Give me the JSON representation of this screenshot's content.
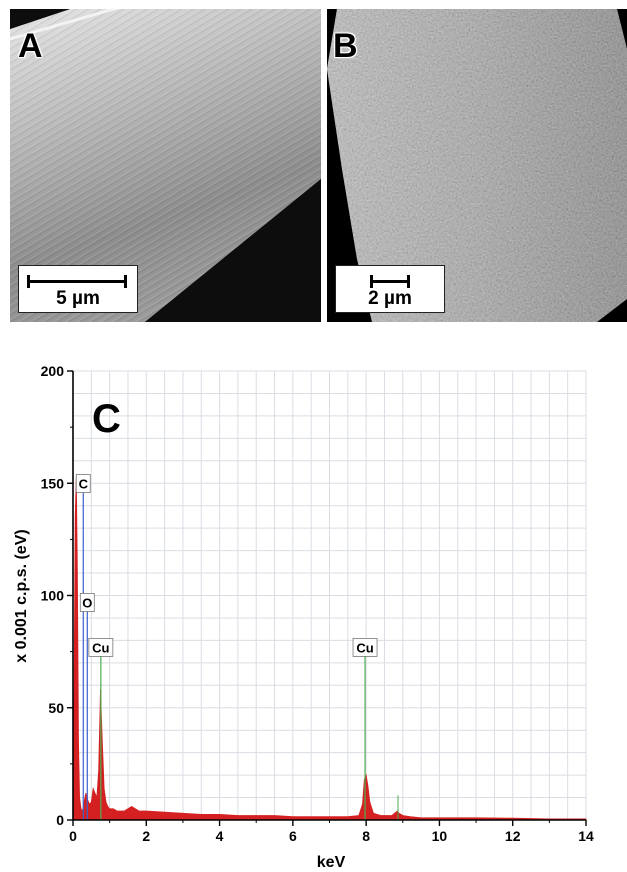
{
  "panels": {
    "a": {
      "letter": "A",
      "scale_label": "5 µm"
    },
    "b": {
      "letter": "B",
      "scale_label": "2 µm"
    },
    "c": {
      "letter": "C"
    }
  },
  "colors": {
    "spectrum_fill": "#d42020",
    "grid": "#d9dde3",
    "marker_carbon": "#3a5fcd",
    "marker_oxygen": "#3a5fcd",
    "marker_copper": "#4caf50"
  },
  "chart_data": {
    "type": "area",
    "title": "",
    "xlabel": "keV",
    "ylabel": "x 0.001 c.p.s. (eV)",
    "xlim": [
      0,
      14
    ],
    "ylim": [
      0,
      200
    ],
    "xticks": [
      0,
      2,
      4,
      6,
      8,
      10,
      12,
      14
    ],
    "yticks": [
      0,
      50,
      100,
      150,
      200
    ],
    "grid": true,
    "series": [
      {
        "x": [
          0,
          0.03,
          0.06,
          0.09,
          0.12,
          0.15,
          0.18,
          0.22,
          0.26,
          0.3,
          0.35,
          0.4,
          0.45,
          0.5,
          0.55,
          0.6,
          0.65,
          0.7,
          0.75,
          0.8,
          0.85,
          0.9,
          0.95,
          1.0,
          1.1,
          1.2,
          1.4,
          1.6,
          1.8,
          2.0,
          2.5,
          3.0,
          3.5,
          4.0,
          4.5,
          5.0,
          5.5,
          6.0,
          6.5,
          7.0,
          7.5,
          7.8,
          7.9,
          7.95,
          8.0,
          8.05,
          8.1,
          8.2,
          8.4,
          8.7,
          8.85,
          8.9,
          9.0,
          9.2,
          9.5,
          10.0,
          11.0,
          12.0,
          13.0,
          14.0
        ],
        "y": [
          5,
          60,
          135,
          153,
          110,
          35,
          10,
          5,
          4,
          8,
          12,
          9,
          7,
          8,
          14,
          12,
          10,
          22,
          58,
          35,
          14,
          8,
          6,
          5,
          5,
          4,
          4,
          6,
          4,
          4,
          3.5,
          3,
          2.5,
          2.5,
          2,
          2,
          2,
          1.5,
          1.5,
          1.5,
          1.5,
          2,
          7,
          18,
          20,
          15,
          8,
          3,
          2,
          2,
          4,
          3,
          2,
          1.5,
          1,
          1,
          1,
          0.8,
          0.5,
          0.5
        ]
      }
    ],
    "annotations": [
      {
        "label": "C",
        "x": 0.28,
        "peak_y": 153
      },
      {
        "label": "O",
        "x": 0.39,
        "peak_y": 100
      },
      {
        "label": "Cu",
        "x": 0.76,
        "peak_y": 80
      },
      {
        "label": "Cu",
        "x": 7.97,
        "peak_y": 80
      }
    ],
    "minor_lines": [
      {
        "x": 8.87,
        "y": 11
      }
    ]
  }
}
